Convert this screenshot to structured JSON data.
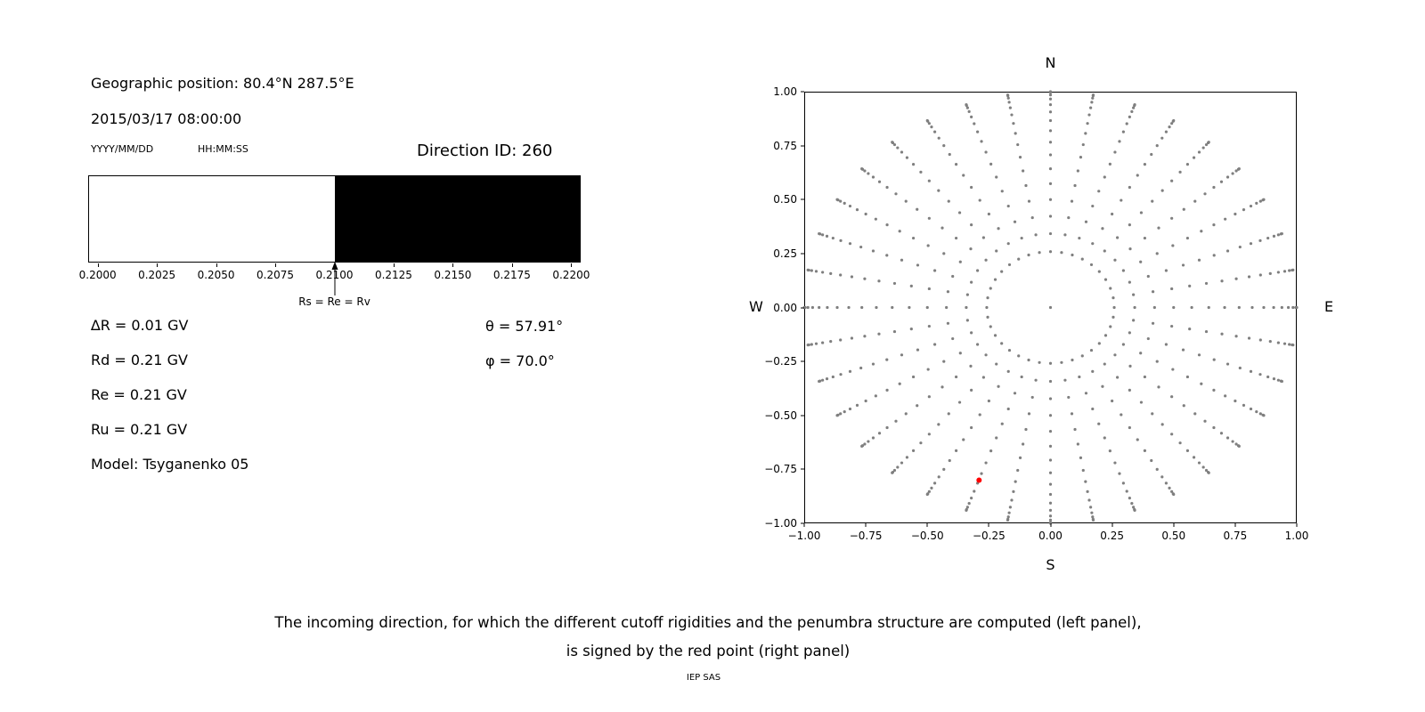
{
  "figure": {
    "background": "#ffffff",
    "caption_line1": "The incoming direction, for which the different cutoff rigidities and the penumbra structure are computed (left panel),",
    "caption_line2": "is signed by the red point (right panel)",
    "credit": "IEP SAS"
  },
  "left_panel": {
    "geo_position": "Geographic position: 80.4°N 287.5°E",
    "datetime": "2015/03/17 08:00:00",
    "date_format": "YYYY/MM/DD",
    "time_format": "HH:MM:SS",
    "direction_id": "Direction ID: 260",
    "rigidity_lines": [
      "∆R = 0.01 GV",
      "Rd = 0.21 GV",
      "Re = 0.21 GV",
      "Ru = 0.21 GV",
      "Model: Tsyganenko 05"
    ],
    "theta": "θ = 57.91°",
    "phi": "φ = 70.0°"
  },
  "chart_data": [
    {
      "type": "bar",
      "name": "penumbra-structure",
      "orientation": "horizontal-span",
      "title": "",
      "xlabel": "",
      "xlim": [
        0.1996,
        0.2204
      ],
      "xticks": [
        {
          "value": 0.2,
          "label": "0.2000"
        },
        {
          "value": 0.2025,
          "label": "0.2025"
        },
        {
          "value": 0.205,
          "label": "0.2050"
        },
        {
          "value": 0.2075,
          "label": "0.2075"
        },
        {
          "value": 0.21,
          "label": "0.2100"
        },
        {
          "value": 0.2125,
          "label": "0.2125"
        },
        {
          "value": 0.215,
          "label": "0.2150"
        },
        {
          "value": 0.2175,
          "label": "0.2175"
        },
        {
          "value": 0.22,
          "label": "0.2200"
        }
      ],
      "segments": [
        {
          "from": 0.1996,
          "to": 0.21,
          "color": "#ffffff",
          "meaning": "allowed rigidities"
        },
        {
          "from": 0.21,
          "to": 0.2204,
          "color": "#000000",
          "meaning": "forbidden rigidities"
        }
      ],
      "annotation": {
        "x": 0.21,
        "label": "Rs = Re = Rv"
      }
    },
    {
      "type": "scatter",
      "name": "incoming-directions",
      "title": "",
      "xlim": [
        -1.0,
        1.0
      ],
      "ylim": [
        -1.0,
        1.0
      ],
      "grid": false,
      "compass_labels": {
        "top": "N",
        "bottom": "S",
        "left": "W",
        "right": "E"
      },
      "xticks": [
        {
          "value": -1.0,
          "label": "−1.00"
        },
        {
          "value": -0.75,
          "label": "−0.75"
        },
        {
          "value": -0.5,
          "label": "−0.50"
        },
        {
          "value": -0.25,
          "label": "−0.25"
        },
        {
          "value": 0.0,
          "label": "0.00"
        },
        {
          "value": 0.25,
          "label": "0.25"
        },
        {
          "value": 0.5,
          "label": "0.50"
        },
        {
          "value": 0.75,
          "label": "0.75"
        },
        {
          "value": 1.0,
          "label": "1.00"
        }
      ],
      "yticks": [
        {
          "value": 1.0,
          "label": "1.00"
        },
        {
          "value": 0.75,
          "label": "0.75"
        },
        {
          "value": 0.5,
          "label": "0.50"
        },
        {
          "value": 0.25,
          "label": "0.25"
        },
        {
          "value": 0.0,
          "label": "0.00"
        },
        {
          "value": -0.25,
          "label": "−0.25"
        },
        {
          "value": -0.5,
          "label": "−0.50"
        },
        {
          "value": -0.75,
          "label": "−0.75"
        },
        {
          "value": -1.0,
          "label": "−1.00"
        }
      ],
      "series": [
        {
          "name": "direction-grid",
          "color": "#7f7f7f",
          "marker_radius_px": 1.6,
          "generator": {
            "azimuth_deg_start": 0,
            "azimuth_deg_stop": 350,
            "azimuth_deg_step": 10,
            "zenith_deg_start": 15,
            "zenith_deg_stop": 90,
            "zenith_deg_step": 5,
            "radius_rule": "sin(zenith)",
            "include_center_point": true
          }
        },
        {
          "name": "selected-direction",
          "color": "#ff0000",
          "marker_radius_px": 3,
          "points": [
            [
              -0.29,
              -0.8
            ]
          ]
        }
      ]
    }
  ]
}
